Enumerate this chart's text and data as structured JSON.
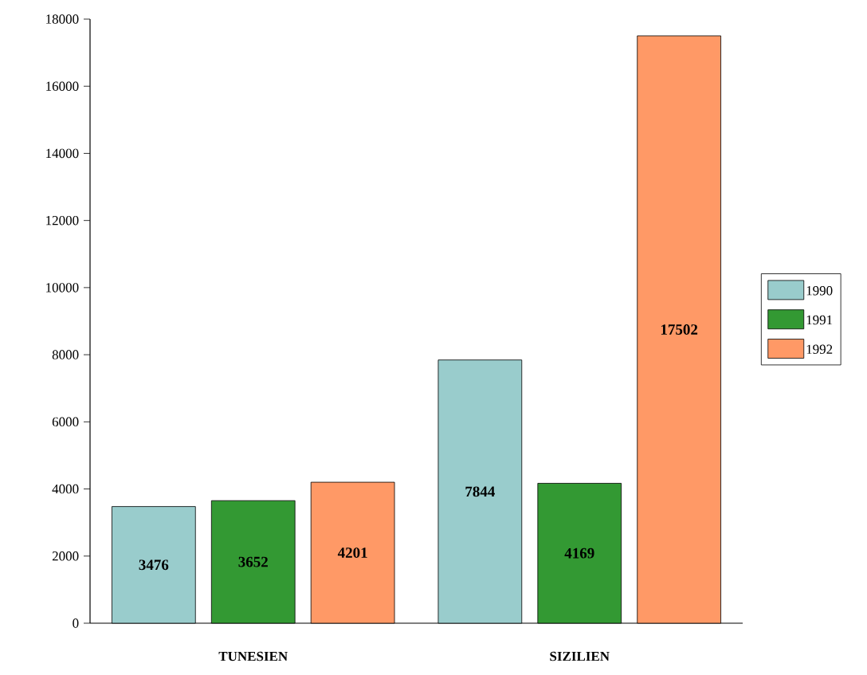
{
  "chart_data": {
    "type": "bar",
    "categories": [
      "TUNESIEN",
      "SIZILIEN"
    ],
    "series": [
      {
        "name": "1990",
        "color": "#99cccc",
        "values": [
          3476,
          7844
        ]
      },
      {
        "name": "1991",
        "color": "#339933",
        "values": [
          3652,
          4169
        ]
      },
      {
        "name": "1992",
        "color": "#ff9966",
        "values": [
          4201,
          17502
        ]
      }
    ],
    "ylim": [
      0,
      18000
    ],
    "yticks": [
      0,
      2000,
      4000,
      6000,
      8000,
      10000,
      12000,
      14000,
      16000,
      18000
    ],
    "data_labels": true,
    "legend": "right"
  }
}
